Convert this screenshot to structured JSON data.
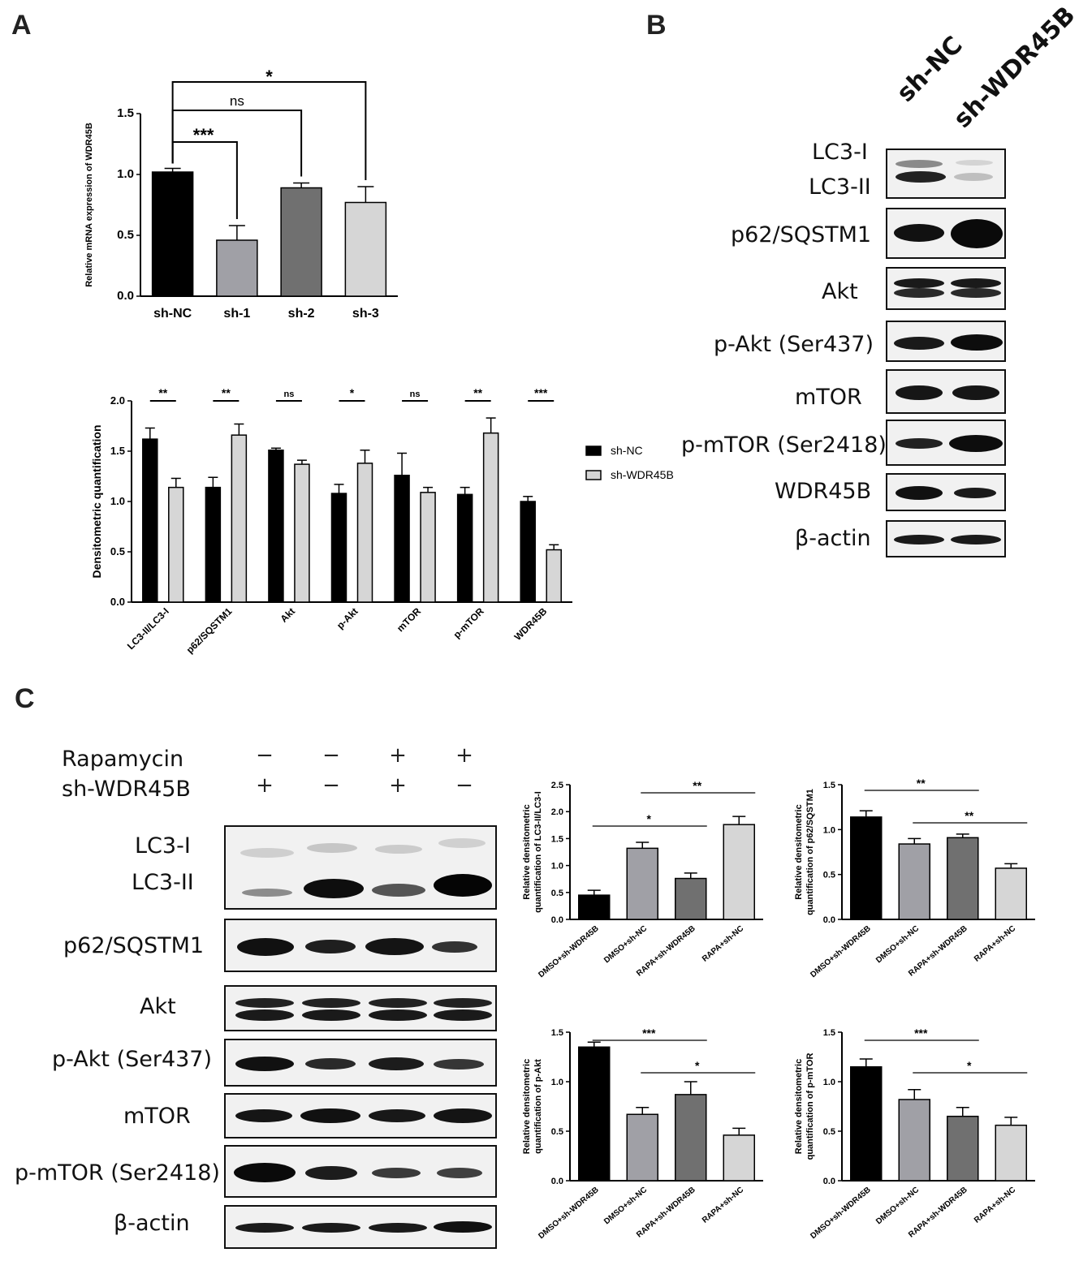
{
  "panels": {
    "a": "A",
    "b": "B",
    "c": "C"
  },
  "colors": {
    "black": "#000000",
    "dark_gray": "#707070",
    "mid_gray": "#a0a0a6",
    "light_gray": "#d6d6d6"
  },
  "chart_data": [
    {
      "id": "chartA1",
      "type": "bar",
      "categories": [
        "sh-NC",
        "sh-1",
        "sh-2",
        "sh-3"
      ],
      "values": [
        1.02,
        0.46,
        0.89,
        0.77
      ],
      "errors": [
        0.03,
        0.12,
        0.04,
        0.13
      ],
      "colors": [
        "#000000",
        "#a0a0a6",
        "#707070",
        "#d6d6d6"
      ],
      "ylabel": "Relative mRNA expression of WDR45B",
      "ylim": [
        0,
        1.5
      ],
      "yticks": [
        "0.0",
        "0.5",
        "1.0",
        "1.5"
      ],
      "significance": [
        {
          "from": 0,
          "to": 1,
          "label": "***"
        },
        {
          "from": 0,
          "to": 2,
          "label": "ns"
        },
        {
          "from": 0,
          "to": 3,
          "label": "*"
        }
      ]
    },
    {
      "id": "chartA2",
      "type": "bar",
      "categories": [
        "LC3-II/LC3-I",
        "p62/SQSTM1",
        "Akt",
        "p-Akt",
        "mTOR",
        "p-mTOR",
        "WDR45B"
      ],
      "series": [
        {
          "name": "sh-NC",
          "color": "#000000",
          "values": [
            1.62,
            1.14,
            1.51,
            1.08,
            1.26,
            1.07,
            1.0
          ],
          "errors": [
            0.11,
            0.1,
            0.02,
            0.09,
            0.22,
            0.07,
            0.05
          ]
        },
        {
          "name": "sh-WDR45B",
          "color": "#d6d6d6",
          "values": [
            1.14,
            1.66,
            1.37,
            1.38,
            1.09,
            1.68,
            0.52
          ],
          "errors": [
            0.09,
            0.11,
            0.04,
            0.13,
            0.05,
            0.15,
            0.05
          ]
        }
      ],
      "ylabel": "Densitometric quantification",
      "ylim": [
        0,
        2.0
      ],
      "yticks": [
        "0.0",
        "0.5",
        "1.0",
        "1.5",
        "2.0"
      ],
      "significance": [
        "**",
        "**",
        "ns",
        "*",
        "ns",
        "**",
        "***"
      ]
    },
    {
      "id": "chartC1",
      "type": "bar",
      "categories": [
        "DMSO+sh-WDR45B",
        "DMSO+sh-NC",
        "RAPA+sh-WDR45B",
        "RAPA+sh-NC"
      ],
      "values": [
        0.45,
        1.32,
        0.76,
        1.76
      ],
      "errors": [
        0.09,
        0.11,
        0.1,
        0.15
      ],
      "colors": [
        "#000000",
        "#a0a0a6",
        "#707070",
        "#d6d6d6"
      ],
      "ylabel": "Relative densitometric quantification of LC3-II/LC3-I",
      "ylim": [
        0,
        2.5
      ],
      "yticks": [
        "0.0",
        "0.5",
        "1.0",
        "1.5",
        "2.0",
        "2.5"
      ],
      "significance": [
        {
          "from": 0,
          "to": 2,
          "label": "*"
        },
        {
          "from": 1,
          "to": 3,
          "label": "**"
        }
      ]
    },
    {
      "id": "chartC2",
      "type": "bar",
      "categories": [
        "DMSO+sh-WDR45B",
        "DMSO+sh-NC",
        "RAPA+sh-WDR45B",
        "RAPA+sh-NC"
      ],
      "values": [
        1.14,
        0.84,
        0.91,
        0.57
      ],
      "errors": [
        0.07,
        0.06,
        0.04,
        0.05
      ],
      "colors": [
        "#000000",
        "#a0a0a6",
        "#707070",
        "#d6d6d6"
      ],
      "ylabel": "Relative densitometric quantification of p62/SQSTM1",
      "ylim": [
        0,
        1.5
      ],
      "yticks": [
        "0.0",
        "0.5",
        "1.0",
        "1.5"
      ],
      "significance": [
        {
          "from": 0,
          "to": 2,
          "label": "**"
        },
        {
          "from": 1,
          "to": 3,
          "label": "**"
        }
      ]
    },
    {
      "id": "chartC3",
      "type": "bar",
      "categories": [
        "DMSO+sh-WDR45B",
        "DMSO+sh-NC",
        "RAPA+sh-WDR45B",
        "RAPA+sh-NC"
      ],
      "values": [
        1.35,
        0.67,
        0.87,
        0.46
      ],
      "errors": [
        0.05,
        0.07,
        0.13,
        0.07
      ],
      "colors": [
        "#000000",
        "#a0a0a6",
        "#707070",
        "#d6d6d6"
      ],
      "ylabel": "Relative densitometric quantification of p-Akt",
      "ylim": [
        0,
        1.5
      ],
      "yticks": [
        "0.0",
        "0.5",
        "1.0",
        "1.5"
      ],
      "significance": [
        {
          "from": 0,
          "to": 2,
          "label": "***"
        },
        {
          "from": 1,
          "to": 3,
          "label": "*"
        }
      ]
    },
    {
      "id": "chartC4",
      "type": "bar",
      "categories": [
        "DMSO+sh-WDR45B",
        "DMSO+sh-NC",
        "RAPA+sh-WDR45B",
        "RAPA+sh-NC"
      ],
      "values": [
        1.15,
        0.82,
        0.65,
        0.56
      ],
      "errors": [
        0.08,
        0.1,
        0.09,
        0.08
      ],
      "colors": [
        "#000000",
        "#a0a0a6",
        "#707070",
        "#d6d6d6"
      ],
      "ylabel": "Relative densitometric quantification of p-mTOR",
      "ylim": [
        0,
        1.5
      ],
      "yticks": [
        "0.0",
        "0.5",
        "1.0",
        "1.5"
      ],
      "significance": [
        {
          "from": 0,
          "to": 2,
          "label": "***"
        },
        {
          "from": 1,
          "to": 3,
          "label": "*"
        }
      ]
    }
  ],
  "blotB": {
    "lanes": [
      "sh-NC",
      "sh-WDR45B"
    ],
    "labels": [
      "LC3-I",
      "LC3-II",
      "p62/SQSTM1",
      "Akt",
      "p-Akt (Ser437)",
      "mTOR",
      "p-mTOR (Ser2418)",
      "WDR45B",
      "β-actin"
    ]
  },
  "blotC": {
    "treatment_labels": [
      "Rapamycin",
      "sh-WDR45B"
    ],
    "rapamycin": [
      "−",
      "−",
      "+",
      "+"
    ],
    "sh_wdr45b": [
      "+",
      "−",
      "+",
      "−"
    ],
    "labels": [
      "LC3-I",
      "LC3-II",
      "p62/SQSTM1",
      "Akt",
      "p-Akt (Ser437)",
      "mTOR",
      "p-mTOR (Ser2418)",
      "β-actin"
    ]
  }
}
